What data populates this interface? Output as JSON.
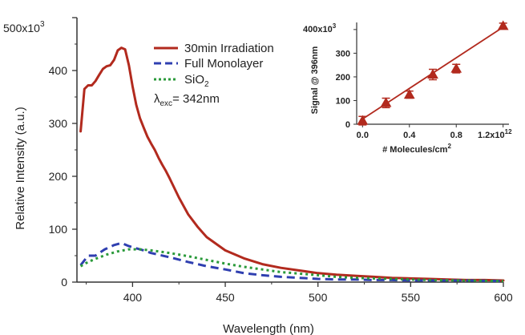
{
  "chart_data": [
    {
      "type": "line",
      "xlabel": "Wavelength (nm)",
      "ylabel": "Relative Intensity (a.u.)",
      "xlim": [
        370,
        600
      ],
      "ylim": [
        0,
        500
      ],
      "x_ticks": [
        "400",
        "450",
        "500",
        "550",
        "600"
      ],
      "y_ticks": [
        "0",
        "100",
        "200",
        "300",
        "400"
      ],
      "y_top_label": "500x10",
      "y_top_exp": "3",
      "annotation": {
        "prefix": "λ",
        "sub": "exc",
        "text": "= 342nm"
      },
      "grid": false,
      "legend_position": "top-center",
      "series": [
        {
          "name": "30min Irradiation",
          "color": "#b22a1e",
          "style": "solid",
          "x": [
            372,
            374,
            376,
            378,
            380,
            382,
            384,
            386,
            388,
            390,
            392,
            394,
            396,
            398,
            400,
            402,
            404,
            406,
            408,
            410,
            412,
            414,
            416,
            418,
            420,
            425,
            430,
            435,
            440,
            450,
            460,
            470,
            480,
            490,
            500,
            510,
            520,
            530,
            540,
            550,
            560,
            570,
            580,
            590,
            600
          ],
          "y": [
            285,
            365,
            372,
            372,
            380,
            392,
            403,
            408,
            410,
            420,
            438,
            443,
            440,
            410,
            370,
            335,
            310,
            292,
            275,
            262,
            250,
            235,
            222,
            210,
            196,
            160,
            128,
            105,
            85,
            60,
            45,
            34,
            27,
            22,
            17,
            14,
            12,
            10,
            8,
            7,
            6,
            5,
            4,
            4,
            3
          ]
        },
        {
          "name": "Full Monolayer",
          "color": "#2f3fb0",
          "style": "dashed",
          "x": [
            372,
            376,
            380,
            385,
            390,
            394,
            398,
            402,
            406,
            410,
            420,
            430,
            440,
            450,
            460,
            470,
            480,
            490,
            500,
            510,
            520,
            530,
            540,
            550,
            560,
            580,
            600
          ],
          "y": [
            32,
            50,
            50,
            62,
            70,
            74,
            68,
            64,
            60,
            55,
            47,
            38,
            30,
            24,
            17,
            13,
            10,
            8,
            6,
            5,
            5,
            4,
            4,
            3,
            3,
            3,
            2
          ]
        },
        {
          "name": "SiO2",
          "color": "#2a9a3a",
          "style": "dotted",
          "x": [
            372,
            376,
            380,
            386,
            392,
            398,
            404,
            410,
            420,
            430,
            440,
            450,
            460,
            470,
            480,
            490,
            500,
            510,
            520,
            530,
            540,
            550,
            560,
            580,
            600
          ],
          "y": [
            30,
            38,
            44,
            52,
            58,
            62,
            62,
            60,
            55,
            49,
            42,
            35,
            29,
            24,
            19,
            16,
            13,
            10,
            8,
            7,
            6,
            5,
            4,
            3,
            2
          ]
        }
      ]
    },
    {
      "type": "scatter",
      "xlabel": "# Molecules/cm",
      "xlabel_sup": "2",
      "ylabel": "Signal @ 396nm",
      "xlim": [
        -0.05,
        1.25
      ],
      "ylim": [
        0,
        430
      ],
      "x_ticks": [
        "0.0",
        "0.4",
        "0.8"
      ],
      "x_tick_values": [
        0.0,
        0.4,
        0.8
      ],
      "x_last_tick": "1.2x10",
      "x_last_tick_exp": "12",
      "x_last_tick_value": 1.2,
      "y_ticks": [
        "0",
        "100",
        "200",
        "300"
      ],
      "y_tick_values": [
        0,
        100,
        200,
        300
      ],
      "y_top_label": "400x10",
      "y_top_exp": "3",
      "y_top_value": 400,
      "grid": false,
      "series": [
        {
          "color": "#b22a1e",
          "x": [
            0.0,
            0.2,
            0.4,
            0.6,
            0.8,
            1.2
          ],
          "y": [
            15,
            90,
            125,
            210,
            235,
            415
          ],
          "error": [
            18,
            20,
            15,
            22,
            18,
            12
          ]
        }
      ],
      "fit_line": {
        "x": [
          0.0,
          1.2
        ],
        "y": [
          22,
          410
        ]
      }
    }
  ]
}
